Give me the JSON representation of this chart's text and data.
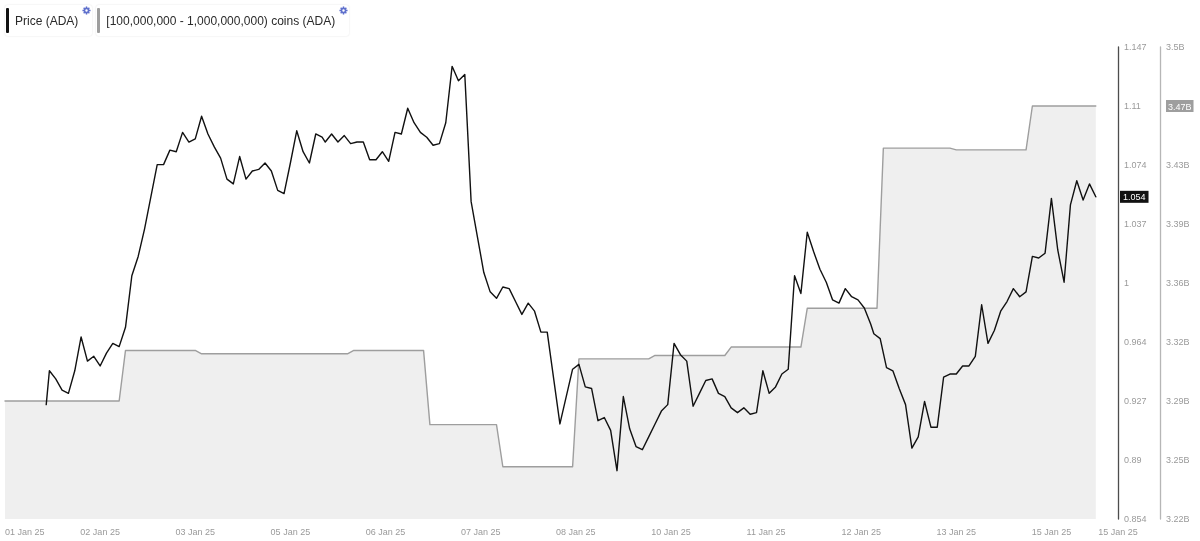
{
  "chart_data": {
    "type": "line",
    "legend": "top left",
    "marker": "none",
    "xlim": [
      "--01-01T06:00",
      "--01-15T21:00"
    ],
    "xticks": [
      {
        "value": "--01-01T06:00",
        "label": "01 Jan 25"
      },
      {
        "value": "--01-02T12:00",
        "label": "02 Jan 25"
      },
      {
        "value": "--01-03T18:00",
        "label": "03 Jan 25"
      },
      {
        "value": "--01-05T00:00",
        "label": "05 Jan 25"
      },
      {
        "value": "--01-06T06:00",
        "label": "06 Jan 25"
      },
      {
        "value": "--01-07T12:00",
        "label": "07 Jan 25"
      },
      {
        "value": "--01-08T18:00",
        "label": "08 Jan 25"
      },
      {
        "value": "--01-10T00:00",
        "label": "10 Jan 25"
      },
      {
        "value": "--01-11T06:00",
        "label": "11 Jan 25"
      },
      {
        "value": "--01-12T12:00",
        "label": "12 Jan 25"
      },
      {
        "value": "--01-13T18:00",
        "label": "13 Jan 25"
      },
      {
        "value": "--01-15T00:00",
        "label": "15 Jan 25"
      },
      {
        "value": "--01-15T21:00",
        "label": "15 Jan 25"
      }
    ],
    "ylim": [
      0.854,
      1.147
    ],
    "yticks": [
      0.854,
      {
        "value": 0.8906,
        "label": "0.89"
      },
      {
        "value": 0.9273,
        "label": "0.927"
      },
      {
        "value": 0.9639,
        "label": "0.964"
      },
      {
        "value": 1.0005,
        "label": "1"
      },
      {
        "value": 1.0371,
        "label": "1.037"
      },
      {
        "value": 1.0738,
        "label": "1.074"
      },
      {
        "value": 1.1104,
        "label": "1.11"
      },
      1.147
    ],
    "y2lim": [
      3.22,
      3.5
    ],
    "y2ticks": [
      {
        "value": 3.22,
        "label": "3.22B"
      },
      {
        "value": 3.255,
        "label": "3.25B"
      },
      {
        "value": 3.29,
        "label": "3.29B"
      },
      {
        "value": 3.325,
        "label": "3.32B"
      },
      {
        "value": 3.36,
        "label": "3.36B"
      },
      {
        "value": 3.395,
        "label": "3.39B"
      },
      {
        "value": 3.43,
        "label": "3.43B"
      },
      {
        "value": 3.465,
        "label": "3.47B"
      },
      {
        "value": 3.5,
        "label": "3.5B"
      }
    ],
    "annotations": [
      {
        "text": "1.054",
        "y": 1.054
      }
    ],
    "series": [
      {
        "name": "Price (ADA)",
        "type": "line",
        "color": "#111111",
        "x": [
          "--01-01T19:00",
          "--01-01T20:00",
          "--01-01T22:00",
          "--01-02T00:00",
          "--01-02T02:00",
          "--01-02T04:00",
          "--01-02T06:00",
          "--01-02T08:00",
          "--01-02T10:00",
          "--01-02T12:00",
          "--01-02T14:00",
          "--01-02T16:00",
          "--01-02T18:00",
          "--01-02T20:00",
          "--01-02T22:00",
          "--01-03T00:00",
          "--01-03T02:00",
          "--01-03T04:00",
          "--01-03T06:00",
          "--01-03T08:00",
          "--01-03T10:00",
          "--01-03T12:00",
          "--01-03T14:00",
          "--01-03T16:00",
          "--01-03T18:00",
          "--01-03T20:00",
          "--01-03T22:00",
          "--01-04T00:00",
          "--01-04T02:00",
          "--01-04T04:00",
          "--01-04T06:00",
          "--01-04T08:00",
          "--01-04T10:00",
          "--01-04T12:00",
          "--01-04T14:00",
          "--01-04T16:00",
          "--01-04T18:00",
          "--01-04T20:00",
          "--01-04T22:00",
          "--01-05T00:00",
          "--01-05T02:00",
          "--01-05T04:00",
          "--01-05T06:00",
          "--01-05T08:00",
          "--01-05T10:00",
          "--01-05T11:00",
          "--01-05T13:00",
          "--01-05T15:00",
          "--01-05T17:00",
          "--01-05T19:00",
          "--01-05T21:00",
          "--01-05T23:00",
          "--01-06T01:00",
          "--01-06T03:00",
          "--01-06T05:00",
          "--01-06T07:00",
          "--01-06T09:00",
          "--01-06T11:00",
          "--01-06T13:00",
          "--01-06T15:00",
          "--01-06T17:00",
          "--01-06T19:00",
          "--01-06T21:00",
          "--01-06T23:00",
          "--01-07T01:00",
          "--01-07T03:00",
          "--01-07T05:00",
          "--01-07T07:00",
          "--01-07T09:00",
          "--01-07T11:00",
          "--01-07T13:00",
          "--01-07T15:00",
          "--01-07T17:00",
          "--01-07T19:00",
          "--01-07T21:00",
          "--01-07T23:00",
          "--01-08T01:00",
          "--01-08T03:00",
          "--01-08T05:00",
          "--01-08T07:00",
          "--01-08T09:00",
          "--01-08T13:00",
          "--01-08T17:00",
          "--01-08T19:00",
          "--01-08T21:00",
          "--01-08T23:00",
          "--01-09T01:00",
          "--01-09T03:00",
          "--01-09T05:00",
          "--01-09T07:00",
          "--01-09T09:00",
          "--01-09T11:00",
          "--01-09T13:00",
          "--01-09T15:00",
          "--01-09T17:00",
          "--01-09T19:00",
          "--01-09T21:00",
          "--01-09T23:00",
          "--01-10T01:00",
          "--01-10T03:00",
          "--01-10T05:00",
          "--01-10T07:00",
          "--01-10T09:00",
          "--01-10T11:00",
          "--01-10T13:00",
          "--01-10T15:00",
          "--01-10T17:00",
          "--01-10T19:00",
          "--01-10T21:00",
          "--01-10T23:00",
          "--01-11T01:00",
          "--01-11T03:00",
          "--01-11T05:00",
          "--01-11T07:00",
          "--01-11T09:00",
          "--01-11T11:00",
          "--01-11T13:00",
          "--01-11T15:00",
          "--01-11T17:00",
          "--01-11T19:00",
          "--01-11T21:00",
          "--01-11T23:00",
          "--01-12T01:00",
          "--01-12T03:00",
          "--01-12T05:00",
          "--01-12T07:00",
          "--01-12T09:00",
          "--01-12T11:00",
          "--01-12T13:00",
          "--01-12T15:00",
          "--01-12T16:00",
          "--01-12T18:00",
          "--01-12T20:00",
          "--01-12T22:00",
          "--01-13T00:00",
          "--01-13T02:00",
          "--01-13T04:00",
          "--01-13T06:00",
          "--01-13T08:00",
          "--01-13T10:00",
          "--01-13T12:00",
          "--01-13T14:00",
          "--01-13T16:00",
          "--01-13T18:00",
          "--01-13T20:00",
          "--01-13T22:00",
          "--01-14T00:00",
          "--01-14T02:00",
          "--01-14T04:00",
          "--01-14T06:00",
          "--01-14T08:00",
          "--01-14T10:00",
          "--01-14T12:00",
          "--01-14T14:00",
          "--01-14T16:00",
          "--01-14T18:00",
          "--01-14T20:00",
          "--01-14T22:00",
          "--01-15T00:00",
          "--01-15T02:00",
          "--01-15T04:00",
          "--01-15T06:00",
          "--01-15T08:00",
          "--01-15T10:00",
          "--01-15T12:00",
          "--01-15T14:00"
        ],
        "values": [
          0.925,
          0.946,
          0.941,
          0.934,
          0.932,
          0.946,
          0.967,
          0.952,
          0.955,
          0.949,
          0.957,
          0.963,
          0.961,
          0.973,
          1.005,
          1.017,
          1.034,
          1.054,
          1.074,
          1.074,
          1.083,
          1.082,
          1.094,
          1.088,
          1.09,
          1.104,
          1.093,
          1.085,
          1.078,
          1.065,
          1.062,
          1.079,
          1.065,
          1.07,
          1.071,
          1.075,
          1.07,
          1.058,
          1.056,
          1.075,
          1.095,
          1.082,
          1.075,
          1.093,
          1.091,
          1.088,
          1.093,
          1.088,
          1.092,
          1.087,
          1.088,
          1.088,
          1.077,
          1.077,
          1.082,
          1.076,
          1.094,
          1.093,
          1.109,
          1.1,
          1.094,
          1.091,
          1.086,
          1.087,
          1.1,
          1.135,
          1.126,
          1.13,
          1.051,
          1.029,
          1.007,
          0.995,
          0.991,
          0.998,
          0.997,
          0.989,
          0.981,
          0.988,
          0.983,
          0.97,
          0.97,
          0.913,
          0.947,
          0.95,
          0.936,
          0.935,
          0.915,
          0.917,
          0.909,
          0.884,
          0.93,
          0.91,
          0.899,
          0.897,
          0.905,
          0.913,
          0.921,
          0.925,
          0.963,
          0.956,
          0.952,
          0.924,
          0.932,
          0.94,
          0.941,
          0.932,
          0.93,
          0.923,
          0.92,
          0.923,
          0.919,
          0.92,
          0.946,
          0.932,
          0.936,
          0.944,
          0.947,
          1.005,
          0.994,
          1.032,
          1.02,
          1.009,
          1.001,
          0.99,
          0.988,
          0.997,
          0.992,
          0.99,
          0.985,
          0.975,
          0.969,
          0.966,
          0.948,
          0.946,
          0.935,
          0.925,
          0.898,
          0.905,
          0.927,
          0.911,
          0.911,
          0.942,
          0.944,
          0.944,
          0.949,
          0.949,
          0.955,
          0.987,
          0.963,
          0.971,
          0.983,
          0.989,
          0.997,
          0.992,
          0.995,
          1.017,
          1.016,
          1.019,
          1.053,
          1.021,
          1.001,
          1.049,
          1.064,
          1.052,
          1.062,
          1.054
        ]
      },
      {
        "name": "[100,000,000 - 1,000,000,000) coins (ADA)",
        "type": "area",
        "axis": "y2",
        "color": "#9e9e9e",
        "x": [
          "--01-01T06:00",
          "--01-02T18:00",
          "--01-02T20:00",
          "--01-03T18:00",
          "--01-03T20:00",
          "--01-05T18:00",
          "--01-05T20:00",
          "--01-06T18:00",
          "--01-06T20:00",
          "--01-07T17:00",
          "--01-07T19:00",
          "--01-08T17:00",
          "--01-08T19:00",
          "--01-09T17:00",
          "--01-09T19:00",
          "--01-10T17:00",
          "--01-10T19:00",
          "--01-11T17:00",
          "--01-11T19:00",
          "--01-12T17:00",
          "--01-12T19:00",
          "--01-13T16:00",
          "--01-13T18:00",
          "--01-14T16:00",
          "--01-14T18:00",
          "--01-15T14:00"
        ],
        "values": [
          3.29,
          3.29,
          3.32,
          3.32,
          3.318,
          3.318,
          3.32,
          3.32,
          3.276,
          3.276,
          3.251,
          3.251,
          3.315,
          3.315,
          3.317,
          3.317,
          3.322,
          3.322,
          3.345,
          3.345,
          3.44,
          3.44,
          3.439,
          3.439,
          3.465,
          3.465
        ]
      }
    ]
  }
}
